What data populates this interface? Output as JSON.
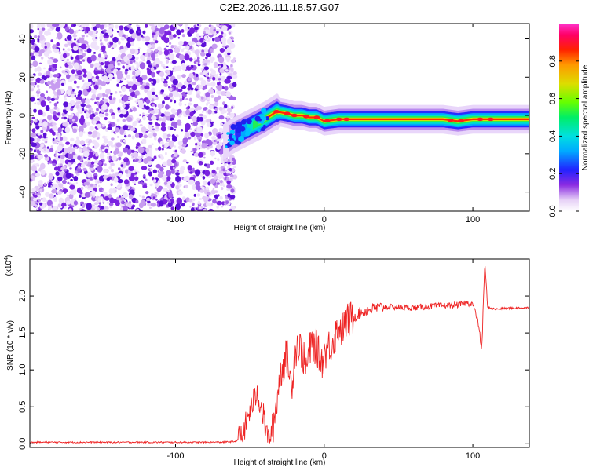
{
  "title": "C2E2.2026.111.18.57.G07",
  "chart_data": [
    {
      "type": "heatmap",
      "xlabel": "Height of straight line (km)",
      "ylabel": "Frequency (Hz)",
      "xlim": [
        -198,
        138
      ],
      "ylim": [
        -50,
        48
      ],
      "xticks": [
        -100,
        0,
        100
      ],
      "yticks": [
        -40,
        -20,
        0,
        20,
        40
      ],
      "description_points": {
        "noise_region_x": [
          -198,
          -60
        ],
        "ridge": {
          "x": [
            -68,
            -60,
            -50,
            -40,
            -32,
            -25,
            -20,
            -15,
            -10,
            -5,
            0,
            10,
            20,
            40,
            60,
            80,
            90,
            100,
            110,
            120,
            138
          ],
          "y": [
            -14,
            -10,
            -6,
            -2,
            2,
            1,
            0,
            0,
            -1,
            -1,
            -3,
            -2,
            -2,
            -2,
            -2,
            -2,
            -3,
            -2,
            -2,
            -2,
            -2
          ]
        }
      },
      "colorbar": {
        "label": "Normalized spectral amplitude",
        "range": [
          0.0,
          1.0
        ],
        "ticks": [
          "0.0",
          "0.2",
          "0.4",
          "0.6",
          "0.8"
        ]
      }
    },
    {
      "type": "line",
      "xlabel": "Height of straight line (km)",
      "ylabel": "SNR (10 * v/v)",
      "scale_note": "(x10",
      "scale_exp": "4",
      "xlim": [
        -198,
        138
      ],
      "ylim": [
        -0.05,
        2.5
      ],
      "xticks": [
        -100,
        0,
        100
      ],
      "yticks": [
        "0.0",
        "0.5",
        "1.0",
        "1.5",
        "2.0"
      ],
      "series": [
        {
          "color": "#ee2222",
          "x": [
            -198,
            -150,
            -100,
            -70,
            -60,
            -55,
            -50,
            -45,
            -40,
            -38,
            -35,
            -32,
            -30,
            -28,
            -25,
            -22,
            -20,
            -18,
            -15,
            -12,
            -10,
            -8,
            -5,
            -2,
            0,
            2,
            5,
            8,
            10,
            12,
            15,
            20,
            25,
            30,
            40,
            50,
            60,
            70,
            80,
            90,
            95,
            100,
            104,
            106,
            108,
            110,
            115,
            120,
            130,
            138
          ],
          "y": [
            0.02,
            0.02,
            0.02,
            0.02,
            0.03,
            0.1,
            0.45,
            0.7,
            0.3,
            0.05,
            0.15,
            0.55,
            0.9,
            1.05,
            1.2,
            0.75,
            1.2,
            1.35,
            1.25,
            1.0,
            1.25,
            1.35,
            1.3,
            1.1,
            1.2,
            1.3,
            1.35,
            1.5,
            1.6,
            1.55,
            1.65,
            1.72,
            1.78,
            1.82,
            1.85,
            1.85,
            1.84,
            1.86,
            1.87,
            1.88,
            1.9,
            1.9,
            1.6,
            1.25,
            2.45,
            1.85,
            1.82,
            1.83,
            1.84,
            1.84
          ]
        }
      ]
    }
  ]
}
